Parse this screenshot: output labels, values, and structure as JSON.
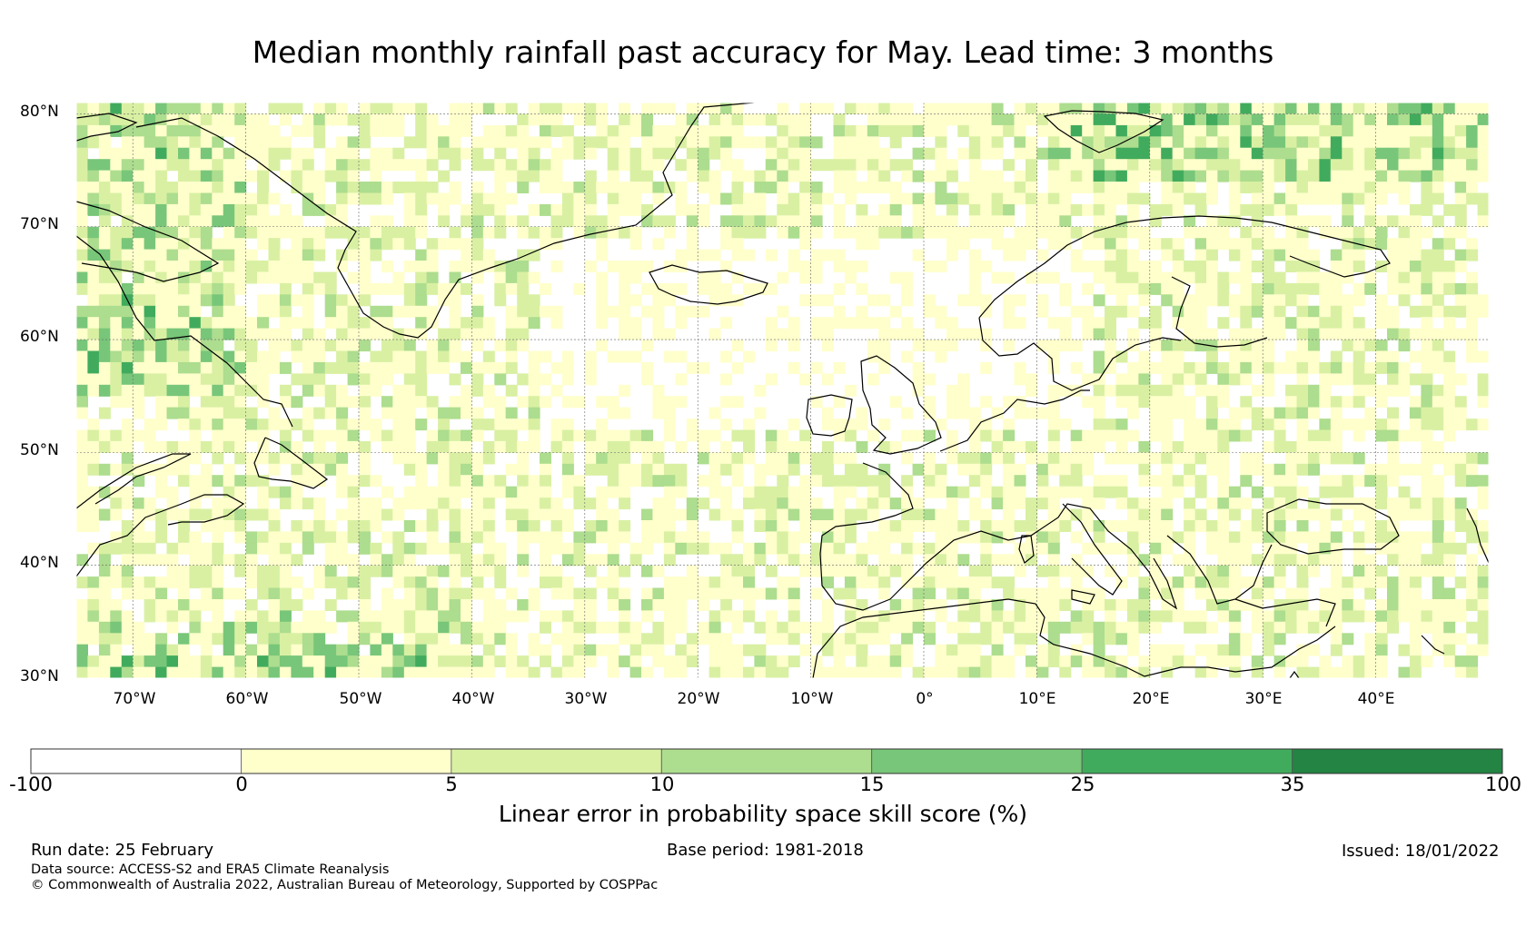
{
  "title": "Median monthly rainfall past accuracy for May. Lead time: 3 months",
  "map": {
    "lat_labels": [
      "80°N",
      "70°N",
      "60°N",
      "50°N",
      "40°N",
      "30°N"
    ],
    "lon_labels": [
      "70°W",
      "60°W",
      "50°W",
      "40°W",
      "30°W",
      "20°W",
      "10°W",
      "0°",
      "10°E",
      "20°E",
      "30°E",
      "40°E"
    ],
    "extent": {
      "lon_min": -75,
      "lon_max": 50,
      "lat_min": 30,
      "lat_max": 81
    },
    "legend_colors": [
      "#ffffff",
      "#ffffcc",
      "#d9f0a3",
      "#addd8e",
      "#78c679",
      "#41ab5d",
      "#238443"
    ]
  },
  "colorbar": {
    "ticks": [
      "-100",
      "0",
      "5",
      "10",
      "15",
      "25",
      "35",
      "100"
    ],
    "label": "Linear error in probability space skill score (%)"
  },
  "footer": {
    "run_date": "Run date: 25 February",
    "base_period": "Base period: 1981-2018",
    "issued": "Issued: 18/01/2022",
    "data_source": "Data source: ACCESS-S2 and ERA5 Climate Reanalysis",
    "copyright": "© Commonwealth of Australia 2022, Australian Bureau of Meteorology, Supported by COSPPac"
  }
}
